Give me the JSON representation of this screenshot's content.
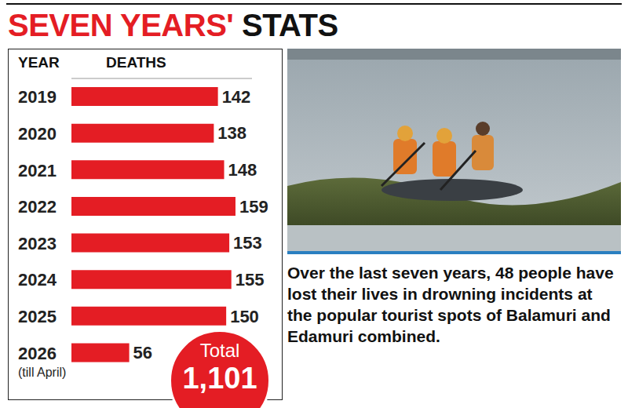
{
  "chart_data": {
    "type": "bar",
    "title": "SEVEN YEARS' STATS",
    "orientation": "horizontal",
    "y_label": "YEAR",
    "x_label": "DEATHS",
    "categories": [
      "2019",
      "2020",
      "2021",
      "2022",
      "2023",
      "2024",
      "2025",
      "2026 (till April)"
    ],
    "values": [
      142,
      138,
      148,
      159,
      153,
      155,
      150,
      56
    ],
    "color": "#e41d24",
    "xlim": [
      0,
      175
    ],
    "xticks": [],
    "data_labels": true,
    "tick_labels": "y",
    "grid": false,
    "total": {
      "label": "Total",
      "value": 1101
    },
    "annotation": "Over the last seven years, 48 people have lost their lives in drowning incidents at the popular tourist spots of Balamuri and Edamuri combined."
  }
}
